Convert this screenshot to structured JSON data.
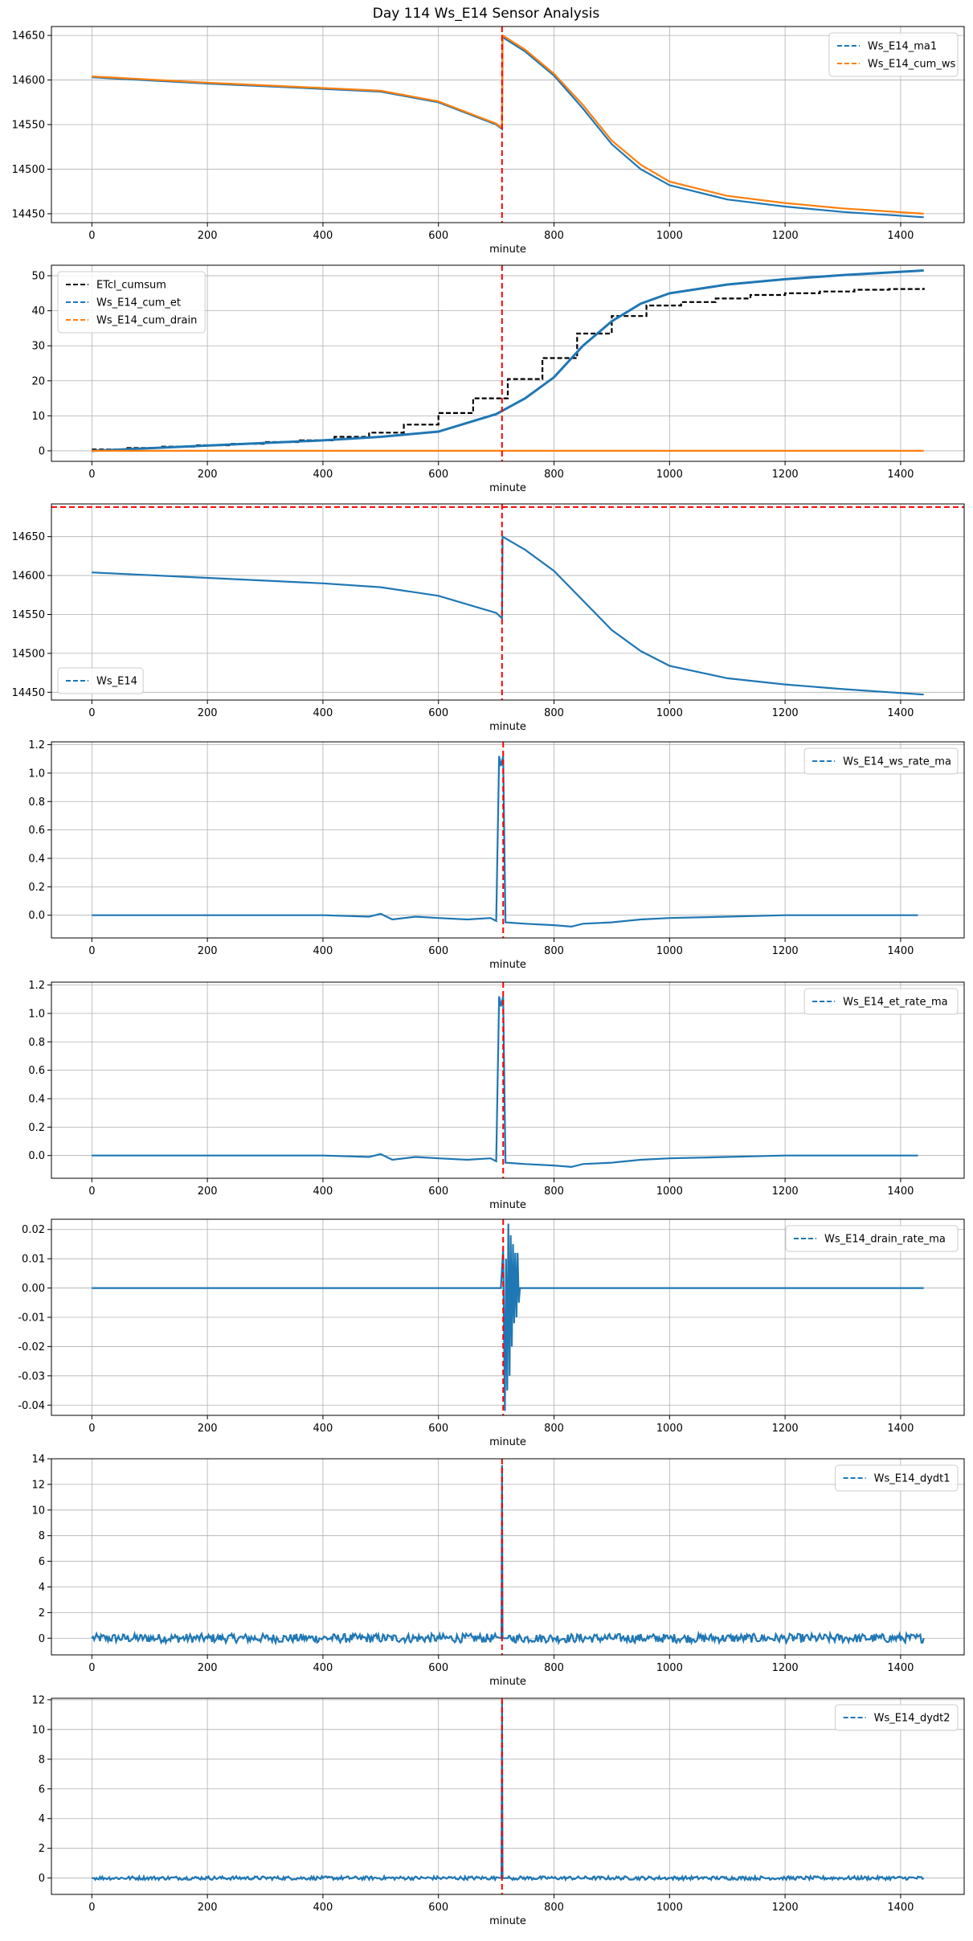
{
  "title": "Day 114 Ws_E14 Sensor Analysis",
  "colors": {
    "blue": "#1f77b4",
    "orange": "#ff7f0e",
    "black": "#000000",
    "red": "#ff0000",
    "grid": "#b0b0b0"
  },
  "chart_data": [
    {
      "type": "line",
      "xlabel": "minute",
      "xlim": [
        -70,
        1510
      ],
      "ylim": [
        14440,
        14660
      ],
      "xticks": [
        0,
        200,
        400,
        600,
        800,
        1000,
        1200,
        1400
      ],
      "yticks": [
        14450,
        14500,
        14550,
        14600,
        14650
      ],
      "legend": "top-right",
      "vlines": [
        710
      ],
      "series": [
        {
          "name": "Ws_E14_ma1",
          "color": "blue",
          "dashed": true,
          "x": [
            0,
            200,
            400,
            500,
            600,
            700,
            710,
            711,
            750,
            800,
            850,
            900,
            950,
            1000,
            1100,
            1200,
            1300,
            1440
          ],
          "y": [
            14603,
            14596,
            14590,
            14587,
            14575,
            14550,
            14545,
            14648,
            14632,
            14605,
            14568,
            14528,
            14500,
            14482,
            14466,
            14458,
            14452,
            14446
          ]
        },
        {
          "name": "Ws_E14_cum_ws",
          "color": "orange",
          "dashed": true,
          "x": [
            0,
            200,
            400,
            500,
            600,
            700,
            710,
            711,
            750,
            800,
            850,
            900,
            950,
            1000,
            1100,
            1200,
            1300,
            1440
          ],
          "y": [
            14604,
            14597,
            14591,
            14588,
            14576,
            14551,
            14546,
            14650,
            14634,
            14607,
            14572,
            14532,
            14505,
            14486,
            14470,
            14462,
            14456,
            14450
          ]
        }
      ]
    },
    {
      "type": "line",
      "xlabel": "minute",
      "xlim": [
        -70,
        1510
      ],
      "ylim": [
        -3,
        53
      ],
      "xticks": [
        0,
        200,
        400,
        600,
        800,
        1000,
        1200,
        1400
      ],
      "yticks": [
        0,
        10,
        20,
        30,
        40,
        50
      ],
      "legend": "top-left",
      "vlines": [
        710
      ],
      "series": [
        {
          "name": "ETcl_cumsum",
          "color": "black",
          "dashed": true,
          "step": true,
          "x": [
            0,
            60,
            120,
            180,
            240,
            300,
            360,
            420,
            480,
            540,
            600,
            660,
            720,
            780,
            840,
            900,
            960,
            1020,
            1080,
            1140,
            1200,
            1260,
            1320,
            1380,
            1440
          ],
          "y": [
            0.4,
            0.8,
            1.2,
            1.6,
            2.0,
            2.5,
            3.0,
            4.0,
            5.2,
            7.5,
            10.8,
            15,
            20.5,
            26.5,
            33.5,
            38.5,
            41.5,
            42.5,
            43.5,
            44.5,
            45,
            45.5,
            46,
            46.2,
            46.5
          ]
        },
        {
          "name": "Ws_E14_cum_et",
          "color": "blue",
          "dashed": true,
          "x": [
            0,
            200,
            400,
            500,
            600,
            700,
            750,
            800,
            850,
            900,
            950,
            1000,
            1100,
            1200,
            1300,
            1440
          ],
          "y": [
            0,
            1.5,
            3,
            4,
            5.5,
            10.5,
            15,
            21,
            30,
            37,
            42,
            45,
            47.5,
            49,
            50.2,
            51.5
          ]
        },
        {
          "name": "Ws_E14_cum_drain",
          "color": "orange",
          "dashed": true,
          "x": [
            0,
            1440
          ],
          "y": [
            0,
            0
          ]
        }
      ]
    },
    {
      "type": "line",
      "xlabel": "minute",
      "xlim": [
        -70,
        1510
      ],
      "ylim": [
        14440,
        14692
      ],
      "xticks": [
        0,
        200,
        400,
        600,
        800,
        1000,
        1200,
        1400
      ],
      "yticks": [
        14450,
        14500,
        14550,
        14600,
        14650
      ],
      "legend": "bottom-left",
      "vlines": [
        710
      ],
      "hlines": [
        14688
      ],
      "series": [
        {
          "name": "Ws_E14",
          "color": "blue",
          "dashed": true,
          "x": [
            0,
            200,
            400,
            500,
            600,
            700,
            710,
            711,
            750,
            800,
            850,
            900,
            950,
            1000,
            1100,
            1200,
            1300,
            1440
          ],
          "y": [
            14604,
            14597,
            14590,
            14585,
            14574,
            14552,
            14545,
            14650,
            14633,
            14606,
            14568,
            14530,
            14503,
            14484,
            14468,
            14460,
            14454,
            14447
          ]
        }
      ]
    },
    {
      "type": "line",
      "xlabel": "minute",
      "xlim": [
        -70,
        1510
      ],
      "ylim": [
        -0.16,
        1.22
      ],
      "xticks": [
        0,
        200,
        400,
        600,
        800,
        1000,
        1200,
        1400
      ],
      "yticks": [
        0.0,
        0.2,
        0.4,
        0.6,
        0.8,
        1.0,
        1.2
      ],
      "ytick_labels": [
        "0.0",
        "0.2",
        "0.4",
        "0.6",
        "0.8",
        "1.0",
        "1.2"
      ],
      "legend": "top-right",
      "vlines": [
        712
      ],
      "series": [
        {
          "name": "Ws_E14_ws_rate_ma",
          "color": "blue",
          "dashed": true,
          "x": [
            0,
            200,
            400,
            480,
            500,
            520,
            560,
            600,
            650,
            690,
            700,
            705,
            708,
            712,
            716,
            750,
            800,
            830,
            850,
            900,
            950,
            1000,
            1100,
            1200,
            1300,
            1430
          ],
          "y": [
            0,
            0,
            0,
            -0.01,
            0.01,
            -0.03,
            -0.01,
            -0.02,
            -0.03,
            -0.02,
            -0.04,
            1.12,
            1.05,
            1.12,
            -0.05,
            -0.06,
            -0.07,
            -0.08,
            -0.06,
            -0.05,
            -0.03,
            -0.02,
            -0.01,
            0,
            0,
            0
          ]
        }
      ]
    },
    {
      "type": "line",
      "xlabel": "minute",
      "xlim": [
        -70,
        1510
      ],
      "ylim": [
        -0.16,
        1.22
      ],
      "xticks": [
        0,
        200,
        400,
        600,
        800,
        1000,
        1200,
        1400
      ],
      "yticks": [
        0.0,
        0.2,
        0.4,
        0.6,
        0.8,
        1.0,
        1.2
      ],
      "ytick_labels": [
        "0.0",
        "0.2",
        "0.4",
        "0.6",
        "0.8",
        "1.0",
        "1.2"
      ],
      "legend": "top-right",
      "vlines": [
        712
      ],
      "series": [
        {
          "name": "Ws_E14_et_rate_ma",
          "color": "blue",
          "dashed": true,
          "x": [
            0,
            200,
            400,
            480,
            500,
            520,
            560,
            600,
            650,
            690,
            700,
            705,
            708,
            712,
            716,
            750,
            800,
            830,
            850,
            900,
            950,
            1000,
            1100,
            1200,
            1300,
            1430
          ],
          "y": [
            0,
            0,
            0,
            -0.01,
            0.01,
            -0.03,
            -0.01,
            -0.02,
            -0.03,
            -0.02,
            -0.04,
            1.12,
            1.05,
            1.12,
            -0.05,
            -0.06,
            -0.07,
            -0.08,
            -0.06,
            -0.05,
            -0.03,
            -0.02,
            -0.01,
            0,
            0,
            0
          ]
        }
      ]
    },
    {
      "type": "line",
      "xlabel": "minute",
      "xlim": [
        -70,
        1510
      ],
      "ylim": [
        -0.0435,
        0.0235
      ],
      "xticks": [
        0,
        200,
        400,
        600,
        800,
        1000,
        1200,
        1400
      ],
      "yticks": [
        -0.04,
        -0.03,
        -0.02,
        -0.01,
        0.0,
        0.01,
        0.02
      ],
      "ytick_labels": [
        "-0.04",
        "-0.03",
        "-0.02",
        "-0.01",
        "0.00",
        "0.01",
        "0.02"
      ],
      "legend": "top-right",
      "vlines": [
        712
      ],
      "series": [
        {
          "name": "Ws_E14_drain_rate_ma",
          "color": "blue",
          "dashed": true,
          "x": [
            0,
            600,
            708,
            712,
            715,
            717,
            719,
            721,
            723,
            725,
            727,
            729,
            731,
            733,
            735,
            737,
            739,
            741,
            800,
            840,
            850,
            1000,
            1200,
            1440
          ],
          "y": [
            0,
            0,
            0,
            0.013,
            -0.042,
            0.01,
            -0.035,
            0.022,
            -0.03,
            0.018,
            -0.02,
            0.015,
            -0.012,
            0.012,
            -0.01,
            0.012,
            -0.005,
            0,
            0,
            0,
            0,
            0,
            0,
            0
          ]
        }
      ]
    },
    {
      "type": "line",
      "xlabel": "minute",
      "xlim": [
        -70,
        1510
      ],
      "ylim": [
        -1.3,
        14
      ],
      "xticks": [
        0,
        200,
        400,
        600,
        800,
        1000,
        1200,
        1400
      ],
      "yticks": [
        0,
        2,
        4,
        6,
        8,
        10,
        12,
        14
      ],
      "legend": "top-right",
      "vlines": [
        710
      ],
      "series": [
        {
          "name": "Ws_E14_dydt1",
          "color": "blue",
          "dashed": true,
          "noise": 0.35,
          "x": [
            0,
            200,
            400,
            600,
            700,
            709,
            710,
            711,
            720,
            800,
            900,
            1000,
            1200,
            1440
          ],
          "y": [
            0,
            0,
            0,
            0,
            0.1,
            0,
            13.5,
            0,
            0,
            0,
            0,
            0,
            0,
            0
          ]
        }
      ]
    },
    {
      "type": "line",
      "xlabel": "minute",
      "xlim": [
        -70,
        1510
      ],
      "ylim": [
        -1.1,
        12.1
      ],
      "xticks": [
        0,
        200,
        400,
        600,
        800,
        1000,
        1200,
        1400
      ],
      "yticks": [
        0,
        2,
        4,
        6,
        8,
        10,
        12
      ],
      "legend": "top-right",
      "vlines": [
        710
      ],
      "series": [
        {
          "name": "Ws_E14_dydt2",
          "color": "blue",
          "dashed": true,
          "noise": 0.12,
          "x": [
            0,
            200,
            400,
            600,
            700,
            709,
            710,
            711,
            720,
            800,
            900,
            1000,
            1200,
            1440
          ],
          "y": [
            0,
            0,
            0,
            0,
            0.05,
            0,
            11.9,
            0,
            0,
            0,
            0,
            0,
            0,
            0
          ]
        }
      ]
    }
  ]
}
